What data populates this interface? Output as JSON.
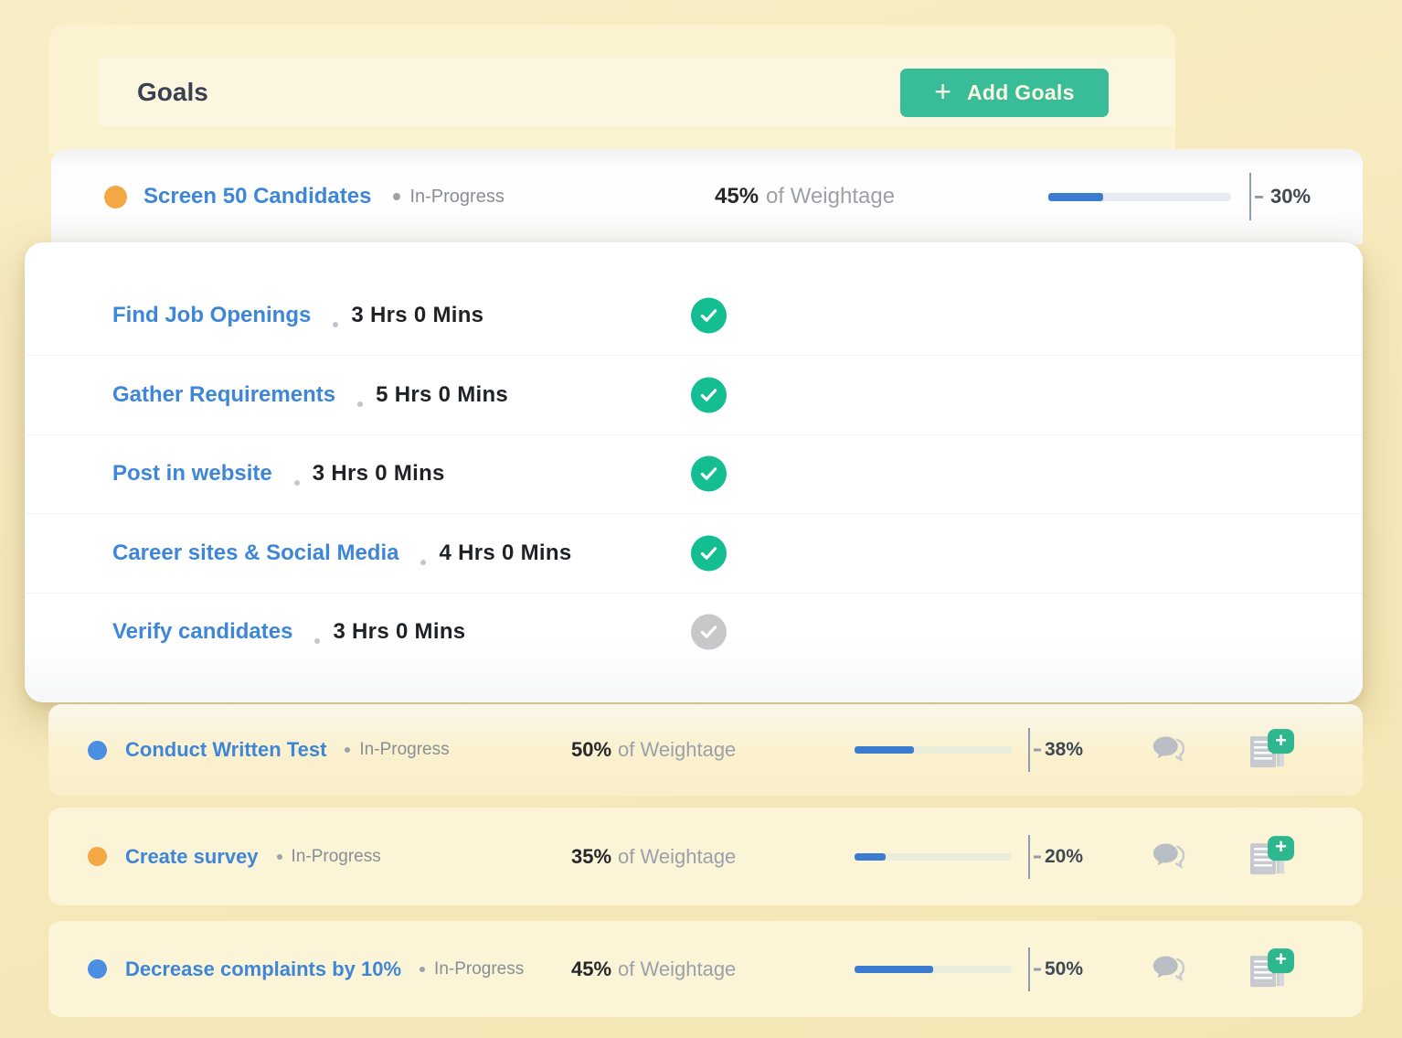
{
  "colors": {
    "page_bg": "#f6e9bc",
    "goals_card_bg": "#fbf2d0",
    "add_button_green": "#38bd98",
    "link_blue": "#3d86d8",
    "progress_blue": "#3b7cd1",
    "check_green": "#14bd92",
    "check_gray": "#c6c8ca",
    "dot_orange": "#f3a844",
    "dot_blue": "#4a8fe2"
  },
  "icons": {
    "plus_badge_glyph": "+"
  },
  "header": {
    "title": "Goals",
    "add_button": {
      "plus": "+",
      "label": "Add Goals"
    }
  },
  "primary_goal": {
    "dot_color": "#f3a844",
    "title": "Screen 50 Candidates",
    "status": "In-Progress",
    "weightage_value": "45%",
    "weightage_label": "of Weightage",
    "progress_pct": 30,
    "progress_text": "30%"
  },
  "tasks": [
    {
      "title": "Find Job Openings",
      "duration": "3 Hrs 0 Mins",
      "completed": true,
      "check_color": "#14bd92"
    },
    {
      "title": "Gather Requirements",
      "duration": "5 Hrs 0 Mins",
      "completed": true,
      "check_color": "#14bd92"
    },
    {
      "title": "Post in website",
      "duration": "3 Hrs 0 Mins",
      "completed": true,
      "check_color": "#14bd92"
    },
    {
      "title": "Career sites & Social Media",
      "duration": "4 Hrs 0 Mins",
      "completed": true,
      "check_color": "#14bd92"
    },
    {
      "title": "Verify candidates",
      "duration": "3 Hrs 0 Mins",
      "completed": false,
      "check_color": "#c6c8ca"
    }
  ],
  "goals": [
    {
      "dot_color": "#4a8fe2",
      "title": "Conduct Written Test",
      "status": "In-Progress",
      "weightage_value": "50%",
      "weightage_label": "of Weightage",
      "progress_pct": 38,
      "progress_text": "38%"
    },
    {
      "dot_color": "#f3a844",
      "title": "Create survey",
      "status": "In-Progress",
      "weightage_value": "35%",
      "weightage_label": "of Weightage",
      "progress_pct": 20,
      "progress_text": "20%"
    },
    {
      "dot_color": "#4a8fe2",
      "title": "Decrease complaints by 10%",
      "status": "In-Progress",
      "weightage_value": "45%",
      "weightage_label": "of Weightage",
      "progress_pct": 50,
      "progress_text": "50%"
    }
  ]
}
